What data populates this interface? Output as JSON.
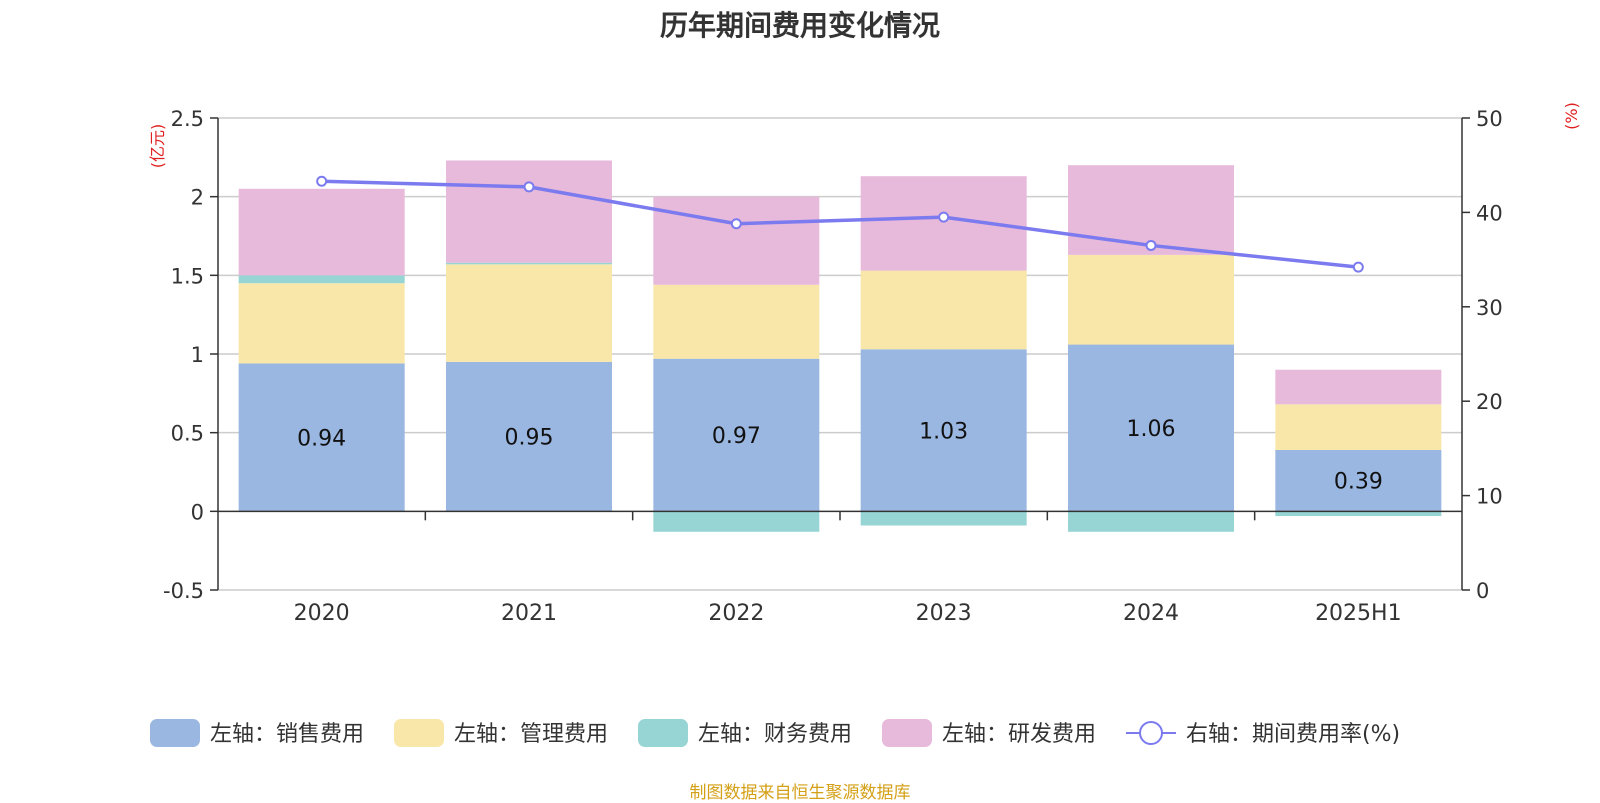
{
  "chart_data": {
    "type": "bar",
    "title": "历年期间费用变化情况",
    "categories": [
      "2020",
      "2021",
      "2022",
      "2023",
      "2024",
      "2025H1"
    ],
    "left_axis": {
      "unit_label": "(亿元)",
      "range": [
        -0.5,
        2.5
      ],
      "ticks": [
        "-0.5",
        "0",
        "0.5",
        "1",
        "1.5",
        "2",
        "2.5"
      ]
    },
    "right_axis": {
      "unit_label": "(%)",
      "range": [
        0,
        50
      ],
      "ticks": [
        "0",
        "10",
        "20",
        "30",
        "40",
        "50"
      ]
    },
    "grid": true,
    "legend_position": "bottom",
    "series": [
      {
        "name": "左轴：销售费用",
        "kind": "bar",
        "axis": "left",
        "color": "#9ab7e1",
        "values": [
          0.94,
          0.95,
          0.97,
          1.03,
          1.06,
          0.39
        ],
        "data_labels": [
          "0.94",
          "0.95",
          "0.97",
          "1.03",
          "1.06",
          "0.39"
        ]
      },
      {
        "name": "左轴：管理费用",
        "kind": "bar",
        "axis": "left",
        "color": "#f8e7a8",
        "values": [
          0.51,
          0.62,
          0.47,
          0.5,
          0.57,
          0.29
        ]
      },
      {
        "name": "左轴：财务费用",
        "kind": "bar",
        "axis": "left",
        "color": "#96d5d4",
        "values": [
          0.05,
          0.01,
          -0.13,
          -0.09,
          -0.13,
          -0.03
        ]
      },
      {
        "name": "左轴：研发费用",
        "kind": "bar",
        "axis": "left",
        "color": "#e7b9da",
        "values": [
          0.55,
          0.65,
          0.56,
          0.6,
          0.57,
          0.22
        ]
      },
      {
        "name": "右轴：期间费用率(%)",
        "kind": "line",
        "axis": "right",
        "color": "#7b7bef",
        "values": [
          43.3,
          42.7,
          38.8,
          39.5,
          36.5,
          34.2
        ]
      }
    ]
  },
  "footer": {
    "source": "制图数据来自恒生聚源数据库"
  }
}
